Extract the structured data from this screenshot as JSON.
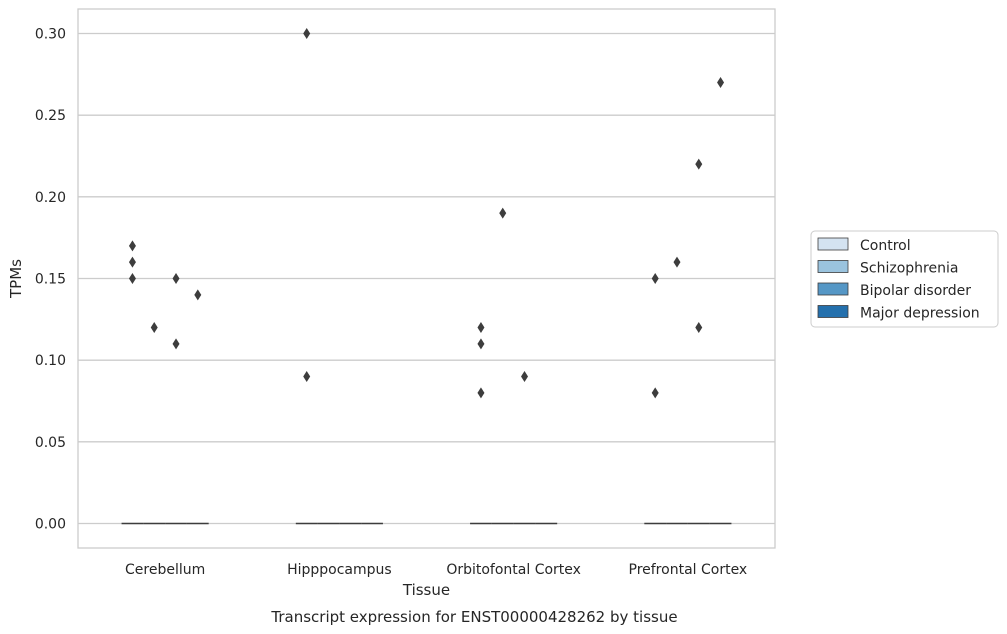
{
  "chart_data": {
    "type": "box",
    "xlabel": "Tissue",
    "ylabel": "TPMs",
    "caption": "Transcript expression for ENST00000428262 by tissue",
    "ylim": [
      -0.015,
      0.315
    ],
    "yticks": [
      0.0,
      0.05,
      0.1,
      0.15,
      0.2,
      0.25,
      0.3
    ],
    "ytick_labels": [
      "0.00",
      "0.05",
      "0.10",
      "0.15",
      "0.20",
      "0.25",
      "0.30"
    ],
    "categories": [
      "Cerebellum",
      "Hipppocampus",
      "Orbitofontal Cortex",
      "Prefrontal Cortex"
    ],
    "grid": "horizontal",
    "legend_position": "right",
    "series": [
      {
        "name": "Control",
        "color": "#d4e3f1",
        "median": [
          0,
          0,
          0,
          0
        ],
        "outliers": [
          [
            0.17,
            0.16,
            0.15
          ],
          [
            0.3,
            0.09
          ],
          [
            0.12,
            0.11,
            0.08
          ],
          [
            0.15,
            0.08
          ]
        ]
      },
      {
        "name": "Schizophrenia",
        "color": "#9ac3de",
        "median": [
          0,
          0,
          0,
          0
        ],
        "outliers": [
          [
            0.12
          ],
          [],
          [
            0.19
          ],
          [
            0.16
          ]
        ]
      },
      {
        "name": "Bipolar disorder",
        "color": "#5597c6",
        "median": [
          0,
          0,
          0,
          0
        ],
        "outliers": [
          [
            0.15,
            0.11
          ],
          [],
          [
            0.09
          ],
          [
            0.22,
            0.12
          ]
        ]
      },
      {
        "name": "Major depression",
        "color": "#2470ad",
        "median": [
          0,
          0,
          0,
          0
        ],
        "outliers": [
          [
            0.14
          ],
          [],
          [],
          [
            0.27
          ]
        ]
      }
    ]
  }
}
